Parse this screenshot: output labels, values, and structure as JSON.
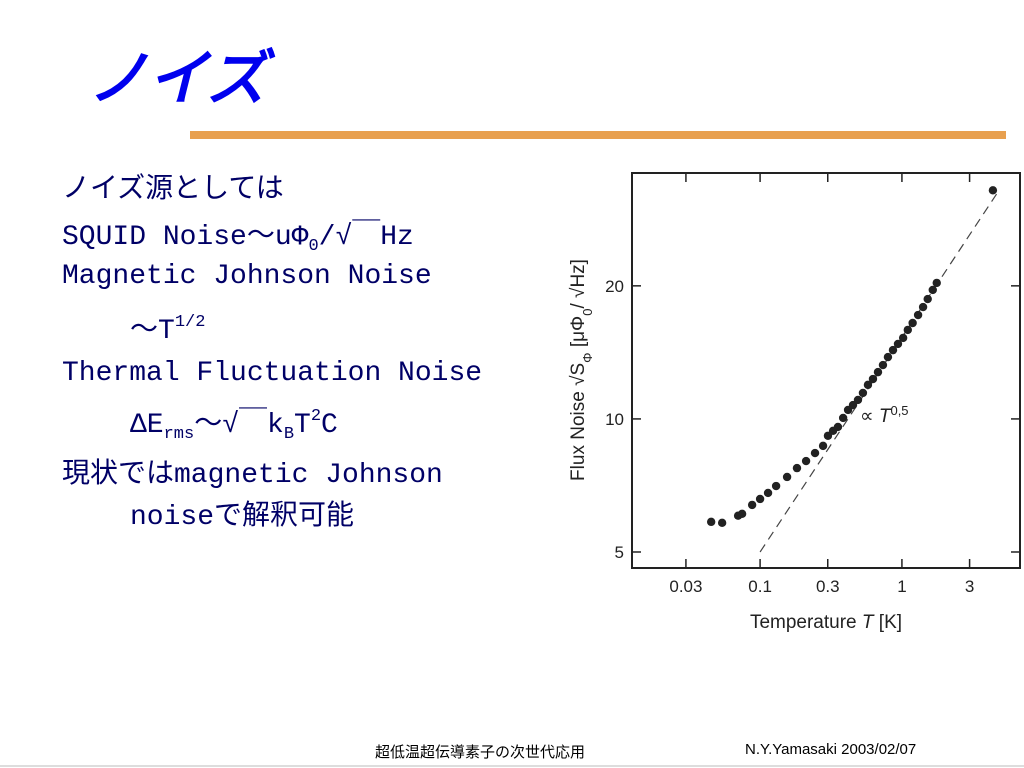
{
  "title": "ノイズ",
  "body": [
    [
      {
        "text": "ノイズ源としては"
      }
    ],
    [
      {
        "text": "SQUID Noise～uΦ"
      },
      {
        "text": "0",
        "style": "sub"
      },
      {
        "text": "/√￣Hz"
      }
    ],
    [
      {
        "text": "Magnetic Johnson Noise"
      }
    ],
    [
      {
        "text": "～T"
      },
      {
        "text": "1/2",
        "style": "sup"
      }
    ],
    [
      {
        "text": "Thermal Fluctuation Noise"
      }
    ],
    [
      {
        "text": "ΔE"
      },
      {
        "text": "rms",
        "style": "sub"
      },
      {
        "text": "～√￣k"
      },
      {
        "text": "B",
        "style": "sub"
      },
      {
        "text": "T"
      },
      {
        "text": "2",
        "style": "sup"
      },
      {
        "text": "C"
      }
    ],
    [
      {
        "text": "現状ではmagnetic Johnson"
      }
    ],
    [
      {
        "text": "noiseで解釈可能"
      }
    ]
  ],
  "footer": {
    "left": "超低温超伝導素子の次世代応用",
    "right": "N.Y.Yamasaki 2003/02/07"
  },
  "chart_data": {
    "type": "scatter",
    "xscale": "log",
    "yscale": "log",
    "x_label": [
      {
        "text": "Temperature "
      },
      {
        "text": "T",
        "style": "italic"
      },
      {
        "text": " [K]"
      }
    ],
    "y_label": [
      {
        "text": "Flux Noise   √S"
      },
      {
        "text": "Φ",
        "style": "sub"
      },
      {
        "text": "   [μΦ"
      },
      {
        "text": "0",
        "style": "sub"
      },
      {
        "text": "/ √Hz]"
      }
    ],
    "xlim": [
      0.0125,
      6.8
    ],
    "ylim": [
      4.6,
      36
    ],
    "xticks": [
      0.03,
      0.1,
      0.3,
      1,
      3
    ],
    "yticks": [
      5,
      10,
      20
    ],
    "color": "#222222",
    "x": [
      0.0452,
      0.054,
      0.07,
      0.0747,
      0.0879,
      0.1,
      0.1138,
      0.1297,
      0.155,
      0.182,
      0.211,
      0.244,
      0.278,
      0.301,
      0.327,
      0.354,
      0.385,
      0.417,
      0.452,
      0.49,
      0.531,
      0.576,
      0.625,
      0.678,
      0.735,
      0.797,
      0.865,
      0.938,
      1.02,
      1.1,
      1.19,
      1.3,
      1.41,
      1.52,
      1.65,
      1.76,
      4.38
    ],
    "values": [
      5.85,
      5.82,
      6.04,
      6.1,
      6.39,
      6.59,
      6.8,
      7.05,
      7.39,
      7.74,
      8.03,
      8.37,
      8.69,
      9.16,
      9.4,
      9.59,
      10.05,
      10.48,
      10.75,
      11.04,
      11.45,
      11.94,
      12.31,
      12.76,
      13.24,
      13.8,
      14.31,
      14.78,
      15.25,
      15.9,
      16.48,
      17.18,
      17.91,
      18.67,
      19.58,
      20.31,
      32.9
    ],
    "fit": {
      "x": [
        0.1,
        4.9
      ],
      "values": [
        5,
        33.1
      ],
      "style": "dashed",
      "color": "#444444"
    },
    "annotation": [
      {
        "text": "∝ "
      },
      {
        "text": "T",
        "style": "italic"
      },
      {
        "text": "0,5",
        "style": "sup"
      }
    ]
  }
}
